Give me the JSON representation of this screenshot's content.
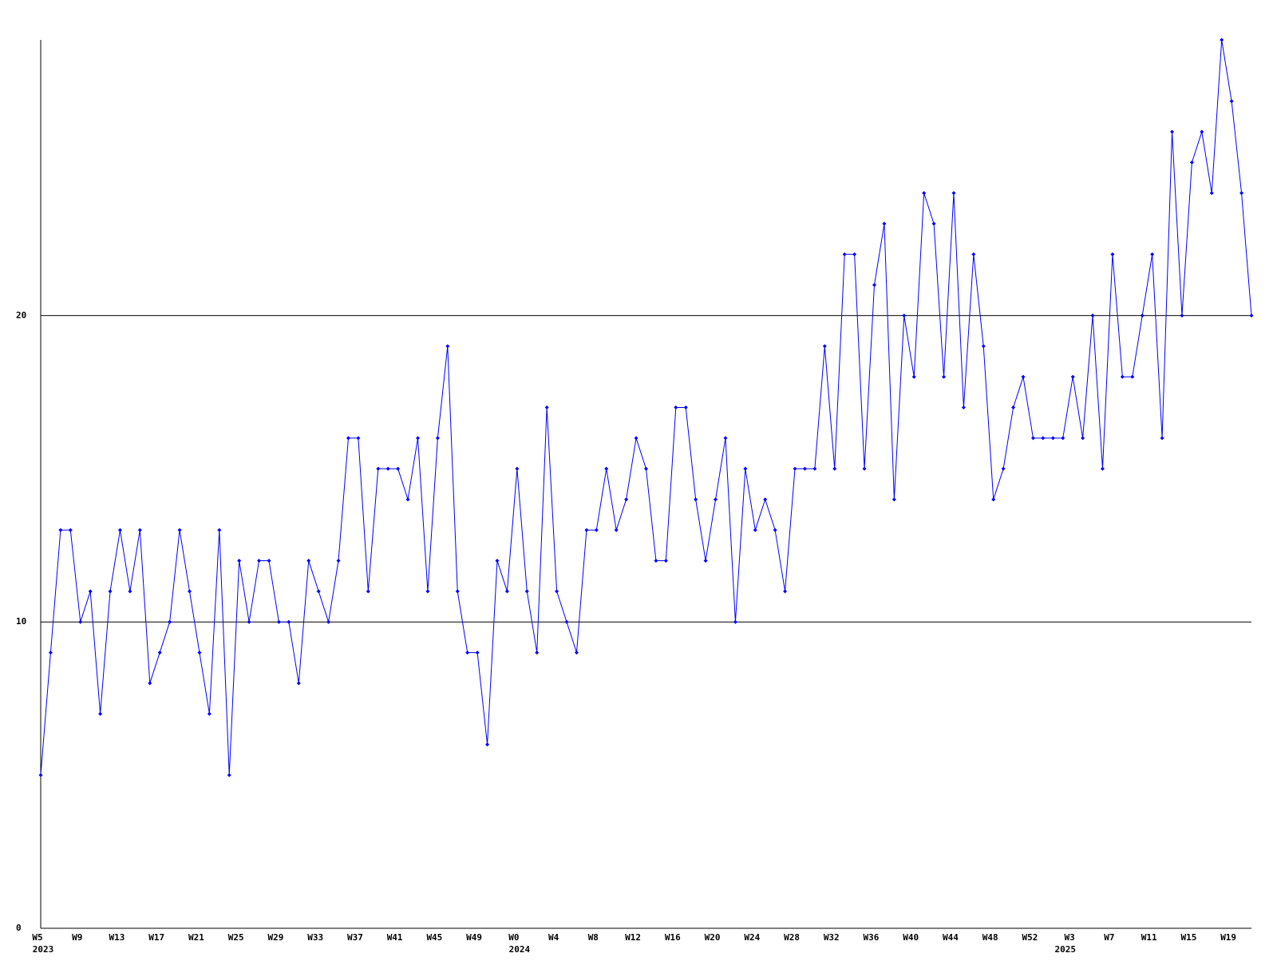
{
  "chart_data": {
    "type": "line",
    "categories": [
      "W5",
      null,
      null,
      null,
      "W9",
      null,
      null,
      null,
      "W13",
      null,
      null,
      null,
      "W17",
      null,
      null,
      null,
      "W21",
      null,
      null,
      null,
      "W25",
      null,
      null,
      null,
      "W29",
      null,
      null,
      null,
      "W33",
      null,
      null,
      null,
      "W37",
      null,
      null,
      null,
      "W41",
      null,
      null,
      null,
      "W45",
      null,
      null,
      null,
      "W49",
      null,
      null,
      null,
      "W0",
      null,
      null,
      null,
      "W4",
      null,
      null,
      null,
      "W8",
      null,
      null,
      null,
      "W12",
      null,
      null,
      null,
      "W16",
      null,
      null,
      null,
      "W20",
      null,
      null,
      null,
      "W24",
      null,
      null,
      null,
      "W28",
      null,
      null,
      null,
      "W32",
      null,
      null,
      null,
      "W36",
      null,
      null,
      null,
      "W40",
      null,
      null,
      null,
      "W44",
      null,
      null,
      null,
      "W48",
      null,
      null,
      null,
      "W52",
      null,
      null,
      null,
      "W3",
      null,
      null,
      null,
      "W7",
      null,
      null,
      null,
      "W11",
      null,
      null,
      null,
      "W15",
      null,
      null,
      null,
      "W19",
      null,
      null
    ],
    "year_labels": [
      "2023",
      null,
      null,
      null,
      null,
      null,
      null,
      null,
      null,
      null,
      null,
      null,
      null,
      null,
      null,
      null,
      null,
      null,
      null,
      null,
      null,
      null,
      null,
      null,
      null,
      null,
      null,
      null,
      null,
      null,
      null,
      null,
      null,
      null,
      null,
      null,
      null,
      null,
      null,
      null,
      null,
      null,
      null,
      null,
      null,
      null,
      null,
      null,
      "2024",
      null,
      null,
      null,
      null,
      null,
      null,
      null,
      null,
      null,
      null,
      null,
      null,
      null,
      null,
      null,
      null,
      null,
      null,
      null,
      null,
      null,
      null,
      null,
      null,
      null,
      null,
      null,
      null,
      null,
      null,
      null,
      null,
      null,
      null,
      null,
      null,
      null,
      null,
      null,
      null,
      null,
      null,
      null,
      null,
      null,
      null,
      null,
      null,
      null,
      null,
      null,
      null,
      null,
      null,
      "2025",
      null,
      null,
      null,
      null,
      null,
      null,
      null,
      null,
      null,
      null,
      null,
      null,
      null,
      null,
      null,
      null,
      null,
      null,
      null,
      null,
      null
    ],
    "values": [
      5,
      9,
      13,
      13,
      10,
      11,
      7,
      11,
      13,
      11,
      13,
      8,
      9,
      10,
      13,
      11,
      9,
      7,
      13,
      5,
      12,
      10,
      12,
      12,
      10,
      10,
      8,
      12,
      11,
      10,
      12,
      16,
      16,
      11,
      15,
      15,
      15,
      14,
      16,
      11,
      16,
      19,
      11,
      9,
      9,
      6,
      12,
      11,
      15,
      11,
      9,
      17,
      11,
      10,
      9,
      13,
      13,
      15,
      13,
      14,
      16,
      15,
      12,
      12,
      17,
      17,
      14,
      12,
      14,
      16,
      10,
      15,
      13,
      14,
      13,
      11,
      15,
      15,
      15,
      19,
      15,
      22,
      22,
      15,
      21,
      23,
      14,
      20,
      18,
      24,
      23,
      18,
      24,
      17,
      22,
      19,
      14,
      15,
      17,
      18,
      16,
      16,
      16,
      16,
      18,
      16,
      20,
      15,
      22,
      18,
      18,
      20,
      22,
      16,
      26,
      20,
      25,
      26,
      24,
      29,
      27,
      24,
      20
    ],
    "color": "#0000ff",
    "ylim": [
      0,
      29
    ],
    "yticks": [
      0,
      10,
      20
    ],
    "grid": true
  }
}
